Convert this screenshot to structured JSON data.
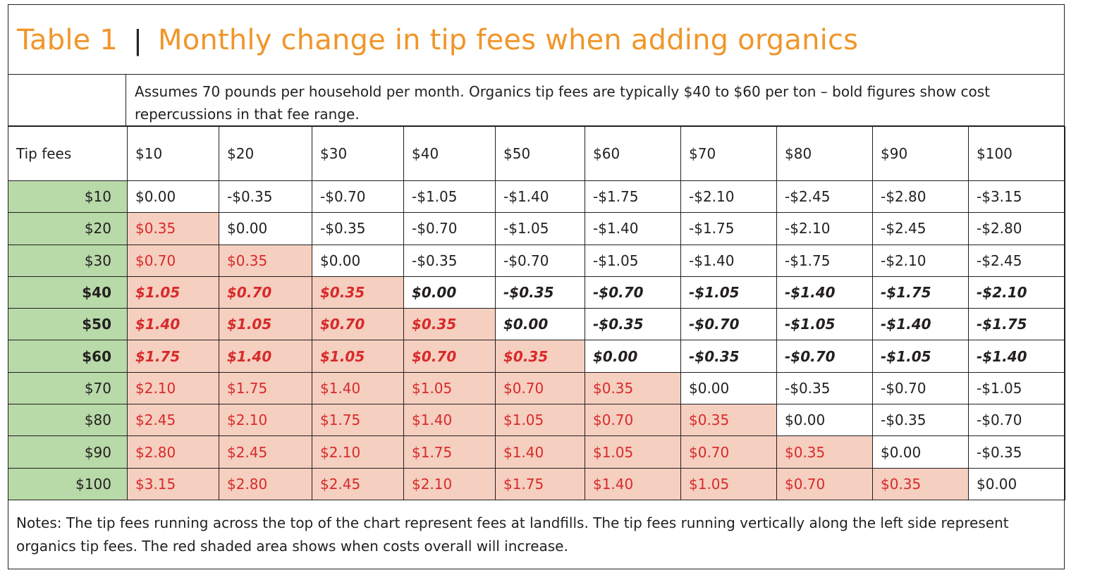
{
  "title": {
    "label": "Table 1",
    "separator": "|",
    "text": "Monthly change in tip fees when adding organics"
  },
  "assumptions": "Assumes 70 pounds per household per month. Organics tip fees are typically $40 to $60 per ton – bold figures show cost repercussions in that fee range.",
  "table": {
    "corner_label": "Tip fees",
    "columns": [
      "$10",
      "$20",
      "$30",
      "$40",
      "$50",
      "$60",
      "$70",
      "$80",
      "$90",
      "$100"
    ],
    "rows": [
      {
        "label": "$10",
        "bold": false,
        "cells": [
          "$0.00",
          "-$0.35",
          "-$0.70",
          "-$1.05",
          "-$1.40",
          "-$1.75",
          "-$2.10",
          "-$2.45",
          "-$2.80",
          "-$3.15"
        ]
      },
      {
        "label": "$20",
        "bold": false,
        "cells": [
          "$0.35",
          "$0.00",
          "-$0.35",
          "-$0.70",
          "-$1.05",
          "-$1.40",
          "-$1.75",
          "-$2.10",
          "-$2.45",
          "-$2.80"
        ]
      },
      {
        "label": "$30",
        "bold": false,
        "cells": [
          "$0.70",
          "$0.35",
          "$0.00",
          "-$0.35",
          "-$0.70",
          "-$1.05",
          "-$1.40",
          "-$1.75",
          "-$2.10",
          "-$2.45"
        ]
      },
      {
        "label": "$40",
        "bold": true,
        "cells": [
          "$1.05",
          "$0.70",
          "$0.35",
          "$0.00",
          "-$0.35",
          "-$0.70",
          "-$1.05",
          "-$1.40",
          "-$1.75",
          "-$2.10"
        ]
      },
      {
        "label": "$50",
        "bold": true,
        "cells": [
          "$1.40",
          "$1.05",
          "$0.70",
          "$0.35",
          "$0.00",
          "-$0.35",
          "-$0.70",
          "-$1.05",
          "-$1.40",
          "-$1.75"
        ]
      },
      {
        "label": "$60",
        "bold": true,
        "cells": [
          "$1.75",
          "$1.40",
          "$1.05",
          "$0.70",
          "$0.35",
          "$0.00",
          "-$0.35",
          "-$0.70",
          "-$1.05",
          "-$1.40"
        ]
      },
      {
        "label": "$70",
        "bold": false,
        "cells": [
          "$2.10",
          "$1.75",
          "$1.40",
          "$1.05",
          "$0.70",
          "$0.35",
          "$0.00",
          "-$0.35",
          "-$0.70",
          "-$1.05"
        ]
      },
      {
        "label": "$80",
        "bold": false,
        "cells": [
          "$2.45",
          "$2.10",
          "$1.75",
          "$1.40",
          "$1.05",
          "$0.70",
          "$0.35",
          "$0.00",
          "-$0.35",
          "-$0.70"
        ]
      },
      {
        "label": "$90",
        "bold": false,
        "cells": [
          "$2.80",
          "$2.45",
          "$2.10",
          "$1.75",
          "$1.40",
          "$1.05",
          "$0.70",
          "$0.35",
          "$0.00",
          "-$0.35"
        ]
      },
      {
        "label": "$100",
        "bold": false,
        "cells": [
          "$3.15",
          "$2.80",
          "$2.45",
          "$2.10",
          "$1.75",
          "$1.40",
          "$1.05",
          "$0.70",
          "$0.35",
          "$0.00"
        ]
      }
    ]
  },
  "notes": "Notes: The tip fees running across the top of the chart represent fees at landfills.  The tip fees running vertically along the left side represent organics tip fees. The red shaded area shows when costs overall will increase.",
  "colors": {
    "title": "#f0962a",
    "row_label_bg": "#b8d9a8",
    "increase_bg": "#f5cfc0",
    "increase_text": "#d82a2a",
    "border": "#231f20"
  }
}
